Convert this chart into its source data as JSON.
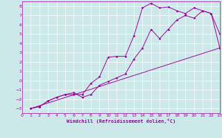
{
  "background_color": "#cce8e8",
  "grid_color": "#ffffff",
  "line_color": "#990099",
  "marker_color": "#990099",
  "xlabel": "Windchill (Refroidissement éolien,°C)",
  "xlim": [
    0,
    23
  ],
  "ylim": [
    -3.5,
    8.5
  ],
  "xticks": [
    0,
    1,
    2,
    3,
    4,
    5,
    6,
    7,
    8,
    9,
    10,
    11,
    12,
    13,
    14,
    15,
    16,
    17,
    18,
    19,
    20,
    21,
    22,
    23
  ],
  "yticks": [
    -3,
    -2,
    -1,
    0,
    1,
    2,
    3,
    4,
    5,
    6,
    7,
    8
  ],
  "curve1_x": [
    1,
    2,
    3,
    4,
    5,
    6,
    7,
    8,
    9,
    10,
    11,
    12,
    13,
    14,
    15,
    16,
    17,
    18,
    19,
    20,
    21,
    22,
    23
  ],
  "curve1_y": [
    -3.0,
    -2.8,
    -2.2,
    -1.8,
    -1.5,
    -1.5,
    -1.5,
    -0.3,
    0.4,
    2.5,
    2.6,
    2.6,
    4.8,
    7.8,
    8.3,
    7.8,
    7.9,
    7.5,
    7.2,
    7.8,
    7.5,
    7.2,
    5.0
  ],
  "curve2_x": [
    1,
    2,
    3,
    4,
    5,
    6,
    7,
    8,
    9,
    10,
    11,
    12,
    13,
    14,
    15,
    16,
    17,
    18,
    19,
    20,
    21,
    22,
    23
  ],
  "curve2_y": [
    -3.0,
    -2.8,
    -2.2,
    -1.8,
    -1.5,
    -1.3,
    -1.8,
    -1.5,
    -0.5,
    -0.1,
    0.3,
    0.7,
    2.3,
    3.5,
    5.5,
    4.5,
    5.5,
    6.5,
    7.0,
    6.7,
    7.5,
    7.2,
    3.5
  ],
  "curve3_x": [
    1,
    23
  ],
  "curve3_y": [
    -3.0,
    3.5
  ]
}
